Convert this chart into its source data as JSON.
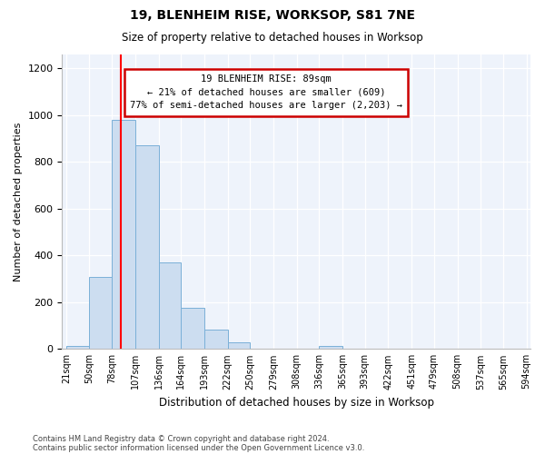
{
  "title1": "19, BLENHEIM RISE, WORKSOP, S81 7NE",
  "title2": "Size of property relative to detached houses in Worksop",
  "xlabel": "Distribution of detached houses by size in Worksop",
  "ylabel": "Number of detached properties",
  "footnote1": "Contains HM Land Registry data © Crown copyright and database right 2024.",
  "footnote2": "Contains public sector information licensed under the Open Government Licence v3.0.",
  "bin_edges": [
    21,
    50,
    78,
    107,
    136,
    164,
    193,
    222,
    250,
    279,
    308,
    336,
    365,
    393,
    422,
    451,
    479,
    508,
    537,
    565,
    594
  ],
  "bin_labels": [
    "21sqm",
    "50sqm",
    "78sqm",
    "107sqm",
    "136sqm",
    "164sqm",
    "193sqm",
    "222sqm",
    "250sqm",
    "279sqm",
    "308sqm",
    "336sqm",
    "365sqm",
    "393sqm",
    "422sqm",
    "451sqm",
    "479sqm",
    "508sqm",
    "537sqm",
    "565sqm",
    "594sqm"
  ],
  "bar_values": [
    13,
    310,
    980,
    870,
    370,
    175,
    82,
    27,
    0,
    0,
    0,
    13,
    0,
    0,
    0,
    0,
    0,
    0,
    0,
    0
  ],
  "bar_color": "#ccddf0",
  "bar_edge_color": "#7ab0d8",
  "red_line_x": 89,
  "annotation_line1": "19 BLENHEIM RISE: 89sqm",
  "annotation_line2": "← 21% of detached houses are smaller (609)",
  "annotation_line3": "77% of semi-detached houses are larger (2,203) →",
  "ylim_max": 1260,
  "yticks": [
    0,
    200,
    400,
    600,
    800,
    1000,
    1200
  ],
  "bg_color": "#eef3fb",
  "grid_color": "#ffffff"
}
